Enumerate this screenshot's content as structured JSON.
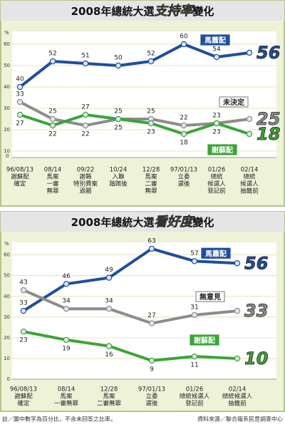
{
  "chart_data": [
    {
      "type": "line",
      "title_parts": [
        "2008年總統大選",
        "支持率",
        "變化"
      ],
      "y_unit": "%",
      "axis_break_label": "0",
      "categories": [
        [
          "96/08/13",
          "謝蘇配",
          "確定"
        ],
        [
          "08/14",
          "馬案",
          "一審",
          "無罪"
        ],
        [
          "09/22",
          "謝縣",
          "特別費案",
          "過關"
        ],
        [
          "10/24",
          "入聯",
          "踏跑後"
        ],
        [
          "12/28",
          "馬案",
          "二審",
          "無罪"
        ],
        [
          "97/01/13",
          "立委",
          "選後"
        ],
        [
          "01/26",
          "總統",
          "候選人",
          "登記前"
        ],
        [
          "02/14",
          "總統",
          "候選人",
          "抽籤前"
        ]
      ],
      "series": [
        {
          "name": "馬蕭配",
          "color": "#1f4e9e",
          "values": [
            40,
            52,
            51,
            50,
            52,
            60,
            54,
            56
          ]
        },
        {
          "name": "未決定",
          "color": "#8c8c8c",
          "values": [
            33,
            25,
            22,
            25,
            25,
            22,
            23,
            25
          ]
        },
        {
          "name": "謝蘇配",
          "color": "#3aa535",
          "values": [
            27,
            22,
            27,
            25,
            23,
            18,
            23,
            18
          ]
        }
      ],
      "ylim": [
        7,
        64
      ],
      "yticks": [
        10,
        20,
        30,
        40,
        50,
        60
      ],
      "grid": true
    },
    {
      "type": "line",
      "title_parts": [
        "2008年總統大選",
        "看好度",
        "變化"
      ],
      "y_unit": "%",
      "categories": [
        [
          "96/08/13",
          "謝蘇配",
          "確定"
        ],
        [
          "08/14",
          "馬案",
          "一審無罪"
        ],
        [
          "12/28",
          "馬案",
          "二審無罪"
        ],
        [
          "97/01/13",
          "立委",
          "選後"
        ],
        [
          "01/26",
          "總統候選人",
          "登記前"
        ],
        [
          "02/14",
          "總統候選人",
          "抽籤前"
        ]
      ],
      "series": [
        {
          "name": "馬蕭配",
          "color": "#1f4e9e",
          "values": [
            33,
            46,
            49,
            63,
            57,
            56
          ]
        },
        {
          "name": "無意見",
          "color": "#8c8c8c",
          "values": [
            43,
            34,
            34,
            27,
            31,
            33
          ]
        },
        {
          "name": "謝蘇配",
          "color": "#3aa535",
          "values": [
            23,
            19,
            16,
            9,
            11,
            10
          ]
        }
      ],
      "ylim": [
        0,
        64
      ],
      "yticks": [
        0,
        10,
        20,
        30,
        40,
        50,
        60
      ],
      "grid": true
    }
  ],
  "footer": {
    "note": "註／圖中數字為百分比，不含未回答之比率。",
    "source": "資料來源／聯合報系民意調查中心"
  }
}
